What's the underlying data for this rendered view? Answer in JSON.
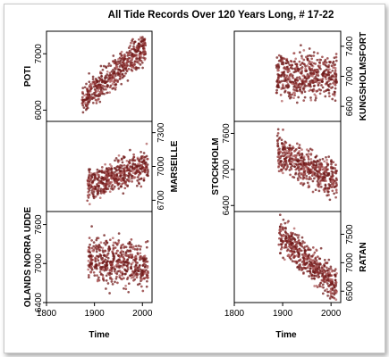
{
  "chart_data": {
    "type": "scatter",
    "title": "All Tide Records Over 120 Years Long, # 17-22",
    "xlabel": "Time",
    "xlim": [
      1800,
      2020
    ],
    "x_ticks": [
      "1800",
      "1900",
      "2000"
    ],
    "point_color": "#7a1f1f",
    "panels": [
      {
        "name": "POTI",
        "column": 0,
        "row": 0,
        "yaxis_side": "left",
        "ylim": [
          5800,
          7400
        ],
        "yticks": [
          6000,
          7000
        ],
        "x_start": 1874,
        "x_end": 2008,
        "trend_start": 6150,
        "trend_end": 7150,
        "spread": 300
      },
      {
        "name": "MARSEILLE",
        "column": 0,
        "row": 1,
        "yaxis_side": "right",
        "ylim": [
          6600,
          7400
        ],
        "yticks": [
          6700,
          7000,
          7300
        ],
        "x_start": 1885,
        "x_end": 2012,
        "trend_start": 6830,
        "trend_end": 7010,
        "spread": 150
      },
      {
        "name": "OLANDS NORRA UDDE",
        "column": 0,
        "row": 2,
        "yaxis_side": "left",
        "ylim": [
          6400,
          7800
        ],
        "yticks": [
          6400,
          7000,
          7600
        ],
        "x_start": 1887,
        "x_end": 2012,
        "trend_start": 7080,
        "trend_end": 6950,
        "spread": 380
      },
      {
        "name": "KUNGSHOLMSFORT",
        "column": 1,
        "row": 0,
        "yaxis_side": "right",
        "ylim": [
          6400,
          7600
        ],
        "yticks": [
          6600,
          7000,
          7400
        ],
        "x_start": 1887,
        "x_end": 2012,
        "trend_start": 7000,
        "trend_end": 7010,
        "spread": 320
      },
      {
        "name": "STOCKHOLM",
        "column": 1,
        "row": 1,
        "yaxis_side": "left",
        "ylim": [
          6300,
          7800
        ],
        "yticks": [
          6400,
          7000,
          7600
        ],
        "x_start": 1889,
        "x_end": 2012,
        "trend_start": 7300,
        "trend_end": 6800,
        "spread": 330
      },
      {
        "name": "RATAN",
        "column": 1,
        "row": 2,
        "yaxis_side": "right",
        "ylim": [
          6300,
          7900
        ],
        "yticks": [
          6500,
          7000,
          7500
        ],
        "x_start": 1892,
        "x_end": 2012,
        "trend_start": 7500,
        "trend_end": 6600,
        "spread": 330
      }
    ]
  }
}
